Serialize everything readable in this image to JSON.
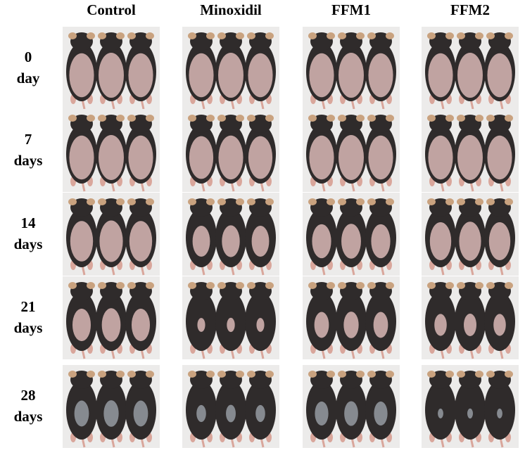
{
  "columns": [
    "Control",
    "Minoxidil",
    "FFM1",
    "FFM2"
  ],
  "rows": [
    [
      "0",
      "day"
    ],
    [
      "7",
      "days"
    ],
    [
      "14",
      "days"
    ],
    [
      "21",
      "days"
    ],
    [
      "28",
      "days"
    ]
  ]
}
